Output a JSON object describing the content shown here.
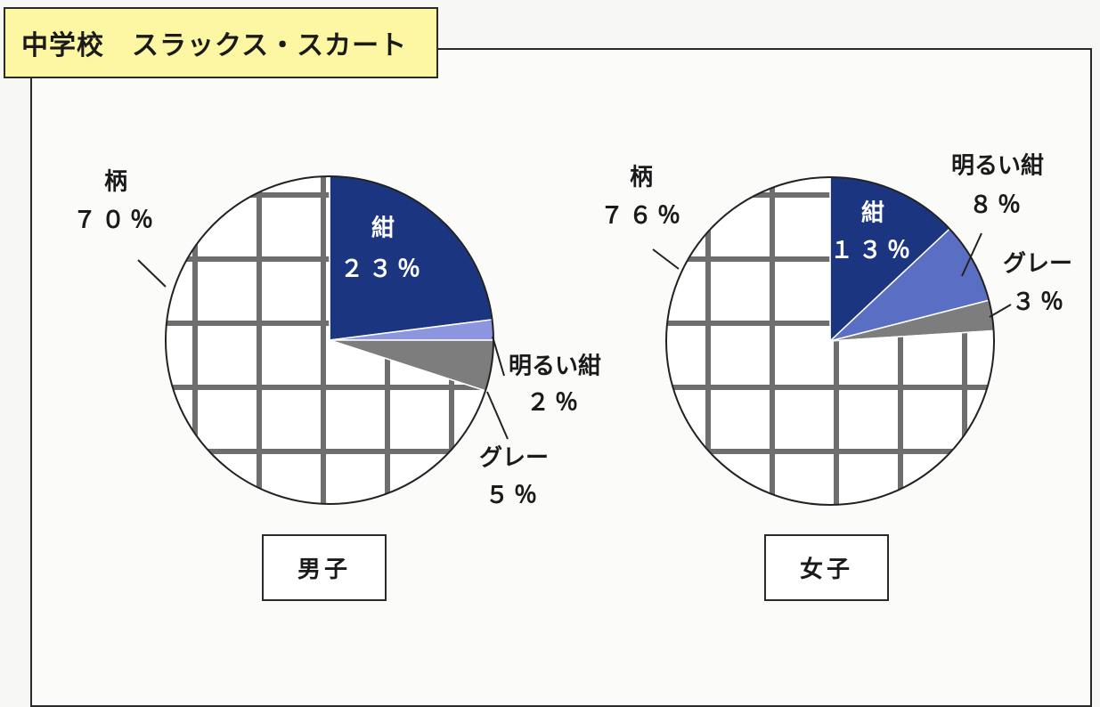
{
  "title": "中学校　スラックス・スカート",
  "chart_data": [
    {
      "type": "pie",
      "title": "男子",
      "slices": [
        {
          "label": "紺",
          "value": 23,
          "display": "２３％",
          "color": "#1b3580"
        },
        {
          "label": "明るい紺",
          "value": 2,
          "display": "２％",
          "color": "#8c96e0"
        },
        {
          "label": "グレー",
          "value": 5,
          "display": "５％",
          "color": "#7d7d7d"
        },
        {
          "label": "柄",
          "value": 70,
          "display": "７０％",
          "color": "plaid"
        }
      ]
    },
    {
      "type": "pie",
      "title": "女子",
      "slices": [
        {
          "label": "紺",
          "value": 13,
          "display": "１３％",
          "color": "#1b3580"
        },
        {
          "label": "明るい紺",
          "value": 8,
          "display": "８％",
          "color": "#5a6fc4"
        },
        {
          "label": "グレー",
          "value": 3,
          "display": "３％",
          "color": "#7d7d7d"
        },
        {
          "label": "柄",
          "value": 76,
          "display": "７６％",
          "color": "plaid"
        }
      ]
    }
  ]
}
